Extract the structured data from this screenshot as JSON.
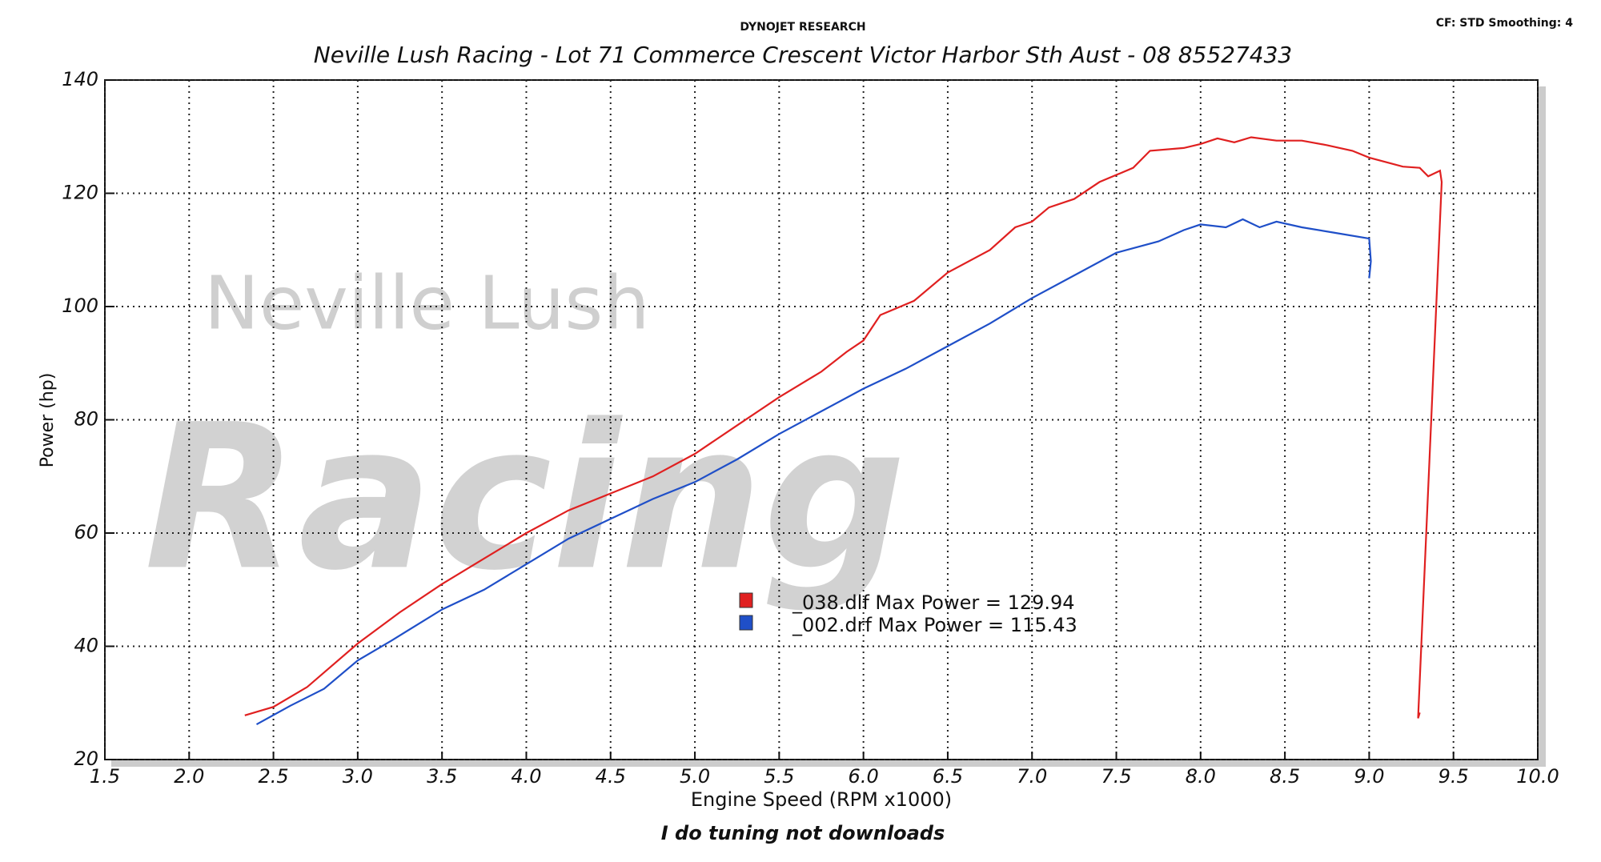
{
  "chart_data": {
    "type": "line",
    "header": "DYNOJET RESEARCH",
    "title": "Neville Lush Racing  - Lot 71 Commerce Crescent  Victor Harbor Sth Aust  - 08 85527433",
    "settings_note": "CF: STD  Smoothing: 4",
    "watermark": [
      "Neville Lush",
      "Racing"
    ],
    "xlabel": "Engine Speed (RPM x1000)",
    "ylabel": "Power (hp)",
    "footer": "I do tuning not downloads",
    "xlim": [
      1.5,
      10.0
    ],
    "ylim": [
      20,
      140
    ],
    "xticks": [
      1.5,
      {
        "value": 2,
        "label": "2.0"
      },
      2.5,
      {
        "value": 3,
        "label": "3.0"
      },
      3.5,
      {
        "value": 4,
        "label": "4.0"
      },
      4.5,
      {
        "value": 5,
        "label": "5.0"
      },
      5.5,
      {
        "value": 6,
        "label": "6.0"
      },
      6.5,
      {
        "value": 7,
        "label": "7.0"
      },
      7.5,
      {
        "value": 8,
        "label": "8.0"
      },
      8.5,
      {
        "value": 9,
        "label": "9.0"
      },
      9.5,
      {
        "value": 10,
        "label": "10.0"
      }
    ],
    "yticks": [
      20,
      40,
      60,
      80,
      100,
      120,
      140
    ],
    "grid": true,
    "series": [
      {
        "name": "_038.dlf Max Power = 129.94",
        "color": "#e02020",
        "x": [
          2.33,
          2.5,
          2.7,
          3.0,
          3.25,
          3.5,
          3.75,
          4.0,
          4.25,
          4.5,
          4.75,
          5.0,
          5.25,
          5.5,
          5.75,
          5.9,
          6.0,
          6.1,
          6.3,
          6.5,
          6.75,
          6.9,
          7.0,
          7.1,
          7.25,
          7.4,
          7.6,
          7.7,
          7.9,
          8.0,
          8.1,
          8.2,
          8.3,
          8.45,
          8.6,
          8.75,
          8.9,
          9.0,
          9.1,
          9.2,
          9.3,
          9.35,
          9.42,
          9.43,
          9.29,
          9.3
        ],
        "values": [
          27.8,
          29.3,
          32.8,
          40.5,
          46,
          51,
          55.5,
          60,
          64,
          67,
          70,
          74,
          79,
          84,
          88.5,
          92,
          94,
          98.5,
          101,
          106,
          110,
          114,
          115,
          117.5,
          119,
          122,
          124.5,
          127.5,
          128,
          128.7,
          129.7,
          129,
          129.9,
          129.3,
          129.3,
          128.5,
          127.5,
          126.3,
          125.5,
          124.7,
          124.5,
          123,
          124,
          122,
          27.3,
          28.3
        ]
      },
      {
        "name": "_002.drf Max Power = 115.43",
        "color": "#1f4fc8",
        "x": [
          2.4,
          2.6,
          2.8,
          3.0,
          3.2,
          3.5,
          3.75,
          4.0,
          4.25,
          4.5,
          4.75,
          5.0,
          5.25,
          5.5,
          5.75,
          6.0,
          6.25,
          6.5,
          6.75,
          7.0,
          7.25,
          7.5,
          7.75,
          7.9,
          8.0,
          8.15,
          8.25,
          8.35,
          8.45,
          8.6,
          8.8,
          9.0,
          9.01,
          9.0
        ],
        "values": [
          26.2,
          29.5,
          32.5,
          37.5,
          41,
          46.5,
          50,
          54.5,
          59,
          62.5,
          66,
          69,
          73,
          77.5,
          81.5,
          85.5,
          89,
          93,
          97,
          101.5,
          105.5,
          109.5,
          111.5,
          113.5,
          114.5,
          114,
          115.4,
          114,
          115,
          114,
          113,
          112,
          108,
          105
        ]
      }
    ]
  }
}
